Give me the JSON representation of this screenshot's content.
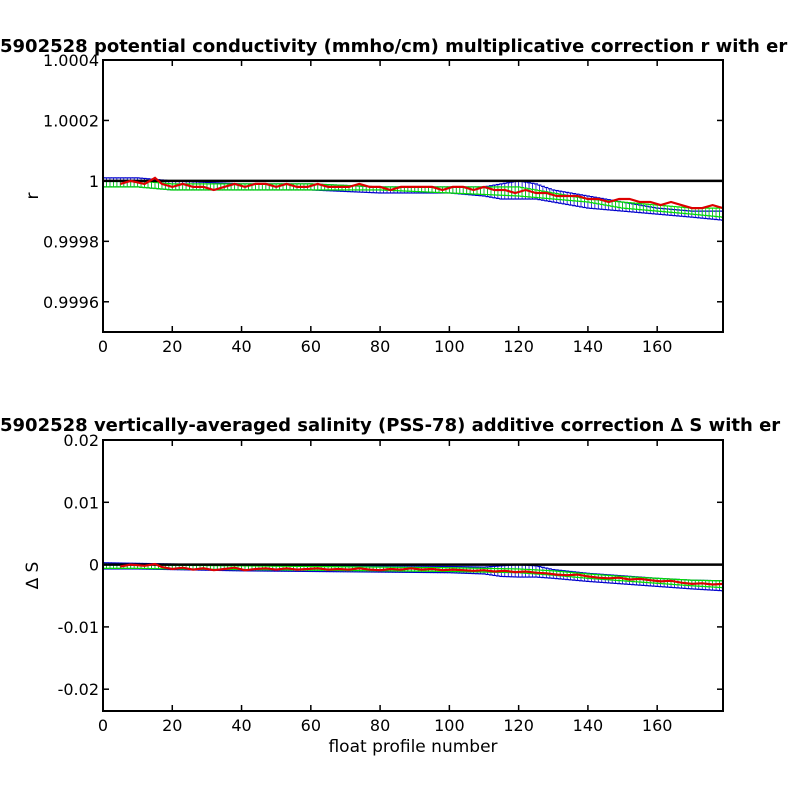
{
  "colors": {
    "blue": "#0000cc",
    "green": "#00dd00",
    "red": "#dd0000",
    "zero": "#000000"
  },
  "chart_data": [
    {
      "type": "line",
      "title": "5902528 potential conductivity (mmho/cm) multiplicative correction r with er",
      "xlabel": "",
      "ylabel": "r",
      "xlim": [
        0,
        179
      ],
      "ylim": [
        0.9995,
        1.0004
      ],
      "xticks": [
        0,
        20,
        40,
        60,
        80,
        100,
        120,
        140,
        160
      ],
      "xtick_labels": [
        "0",
        "20",
        "40",
        "60",
        "80",
        "100",
        "120",
        "140",
        "160"
      ],
      "yticks": [
        0.9996,
        0.9998,
        1.0,
        1.0002,
        1.0004
      ],
      "ytick_labels": [
        "0.9996",
        "0.9998",
        "1",
        "1.0002",
        "1.0004"
      ],
      "reference_line": 1.0,
      "series": [
        {
          "role": "error-band",
          "color": "blue",
          "x": [
            0,
            10,
            20,
            40,
            60,
            80,
            100,
            110,
            115,
            120,
            125,
            130,
            140,
            150,
            160,
            170,
            179
          ],
          "upper": [
            1.00001,
            1.00001,
            1.0,
            0.99999,
            0.99999,
            0.99998,
            0.99998,
            0.99998,
            0.99999,
            1.0,
            0.99999,
            0.99997,
            0.99995,
            0.99993,
            0.99991,
            0.9999,
            0.9999
          ],
          "lower": [
            0.99998,
            0.99998,
            0.99997,
            0.99997,
            0.99997,
            0.99996,
            0.99996,
            0.99995,
            0.99994,
            0.99994,
            0.99994,
            0.99993,
            0.99991,
            0.9999,
            0.99989,
            0.99988,
            0.99987
          ]
        },
        {
          "role": "error-band",
          "color": "green",
          "x": [
            0,
            10,
            20,
            40,
            60,
            80,
            100,
            120,
            130,
            140,
            150,
            160,
            170,
            179
          ],
          "upper": [
            1.0,
            1.0,
            0.99999,
            0.99999,
            0.99999,
            0.99998,
            0.99998,
            0.99998,
            0.99996,
            0.99994,
            0.99993,
            0.99992,
            0.99991,
            0.99991
          ],
          "lower": [
            0.99998,
            0.99998,
            0.99997,
            0.99997,
            0.99997,
            0.99997,
            0.99996,
            0.99995,
            0.99994,
            0.99993,
            0.99991,
            0.9999,
            0.99989,
            0.99988
          ]
        },
        {
          "role": "estimate",
          "color": "red",
          "x": [
            5,
            8,
            12,
            15,
            17,
            20,
            23,
            26,
            29,
            32,
            35,
            38,
            41,
            44,
            47,
            50,
            53,
            56,
            59,
            62,
            65,
            68,
            71,
            74,
            77,
            80,
            83,
            86,
            89,
            92,
            95,
            98,
            101,
            104,
            107,
            110,
            113,
            116,
            119,
            122,
            125,
            128,
            131,
            134,
            137,
            140,
            143,
            146,
            149,
            152,
            155,
            158,
            161,
            164,
            167,
            170,
            173,
            176,
            179
          ],
          "y": [
            0.99999,
            1.0,
            0.99999,
            1.00001,
            0.99999,
            0.99998,
            0.99999,
            0.99998,
            0.99998,
            0.99997,
            0.99998,
            0.99999,
            0.99998,
            0.99999,
            0.99999,
            0.99998,
            0.99999,
            0.99998,
            0.99998,
            0.99999,
            0.99998,
            0.99998,
            0.99998,
            0.99999,
            0.99998,
            0.99998,
            0.99997,
            0.99998,
            0.99998,
            0.99998,
            0.99998,
            0.99997,
            0.99998,
            0.99998,
            0.99997,
            0.99998,
            0.99997,
            0.99997,
            0.99996,
            0.99997,
            0.99996,
            0.99996,
            0.99995,
            0.99995,
            0.99995,
            0.99994,
            0.99994,
            0.99993,
            0.99994,
            0.99994,
            0.99993,
            0.99993,
            0.99992,
            0.99993,
            0.99992,
            0.99991,
            0.99991,
            0.99992,
            0.99991
          ]
        }
      ]
    },
    {
      "type": "line",
      "title": "5902528 vertically-averaged salinity (PSS-78) additive correction ∆ S with er",
      "xlabel": "float profile number",
      "ylabel": "∆ S",
      "xlim": [
        0,
        179
      ],
      "ylim": [
        -0.0235,
        0.02
      ],
      "xticks": [
        0,
        20,
        40,
        60,
        80,
        100,
        120,
        140,
        160
      ],
      "xtick_labels": [
        "0",
        "20",
        "40",
        "60",
        "80",
        "100",
        "120",
        "140",
        "160"
      ],
      "yticks": [
        -0.02,
        -0.01,
        0.0,
        0.01,
        0.02
      ],
      "ytick_labels": [
        "-0.02",
        "-0.01",
        "0",
        "0.01",
        "0.02"
      ],
      "reference_line": 0.0,
      "series": [
        {
          "role": "error-band",
          "color": "blue",
          "x": [
            0,
            10,
            20,
            40,
            60,
            80,
            100,
            110,
            115,
            120,
            125,
            130,
            140,
            150,
            160,
            170,
            179
          ],
          "upper": [
            0.0003,
            0.0002,
            0.0001,
            -0.0001,
            -0.0002,
            -0.0002,
            -0.0003,
            -0.0004,
            -0.0002,
            0.0,
            -0.0002,
            -0.0008,
            -0.0014,
            -0.0018,
            -0.0022,
            -0.0025,
            -0.0026
          ],
          "lower": [
            -0.0007,
            -0.0007,
            -0.0008,
            -0.001,
            -0.0011,
            -0.0012,
            -0.0013,
            -0.0015,
            -0.0019,
            -0.002,
            -0.002,
            -0.0022,
            -0.0027,
            -0.0031,
            -0.0035,
            -0.0039,
            -0.0042
          ]
        },
        {
          "role": "error-band",
          "color": "green",
          "x": [
            0,
            10,
            20,
            40,
            60,
            80,
            100,
            120,
            130,
            140,
            150,
            160,
            170,
            179
          ],
          "upper": [
            0.0001,
            0.0,
            -0.0001,
            -0.0002,
            -0.0003,
            -0.0004,
            -0.0005,
            -0.0007,
            -0.001,
            -0.0015,
            -0.0019,
            -0.0022,
            -0.0025,
            -0.0026
          ],
          "lower": [
            -0.0006,
            -0.0006,
            -0.0007,
            -0.0008,
            -0.0009,
            -0.001,
            -0.0011,
            -0.0013,
            -0.0017,
            -0.0022,
            -0.0026,
            -0.003,
            -0.0034,
            -0.0037
          ]
        },
        {
          "role": "estimate",
          "color": "red",
          "x": [
            5,
            8,
            12,
            15,
            17,
            20,
            23,
            26,
            29,
            32,
            35,
            38,
            41,
            44,
            47,
            50,
            53,
            56,
            59,
            62,
            65,
            68,
            71,
            74,
            77,
            80,
            83,
            86,
            89,
            92,
            95,
            98,
            101,
            104,
            107,
            110,
            113,
            116,
            119,
            122,
            125,
            128,
            131,
            134,
            137,
            140,
            143,
            146,
            149,
            152,
            155,
            158,
            161,
            164,
            167,
            170,
            173,
            176,
            179
          ],
          "y": [
            -0.0003,
            0.0,
            -0.0002,
            0.0001,
            -0.0004,
            -0.0007,
            -0.0005,
            -0.0008,
            -0.0006,
            -0.0009,
            -0.0007,
            -0.0005,
            -0.0009,
            -0.0007,
            -0.0006,
            -0.0008,
            -0.0006,
            -0.0008,
            -0.0007,
            -0.0006,
            -0.0008,
            -0.0007,
            -0.0008,
            -0.0006,
            -0.0008,
            -0.0009,
            -0.0007,
            -0.0008,
            -0.0006,
            -0.0008,
            -0.0007,
            -0.0009,
            -0.0008,
            -0.0009,
            -0.001,
            -0.0009,
            -0.0011,
            -0.001,
            -0.0012,
            -0.0011,
            -0.0013,
            -0.0014,
            -0.0016,
            -0.0017,
            -0.0016,
            -0.0019,
            -0.0021,
            -0.0022,
            -0.0021,
            -0.0024,
            -0.0023,
            -0.0025,
            -0.0027,
            -0.0026,
            -0.0029,
            -0.0031,
            -0.003,
            -0.0032,
            -0.0031
          ]
        }
      ]
    }
  ]
}
